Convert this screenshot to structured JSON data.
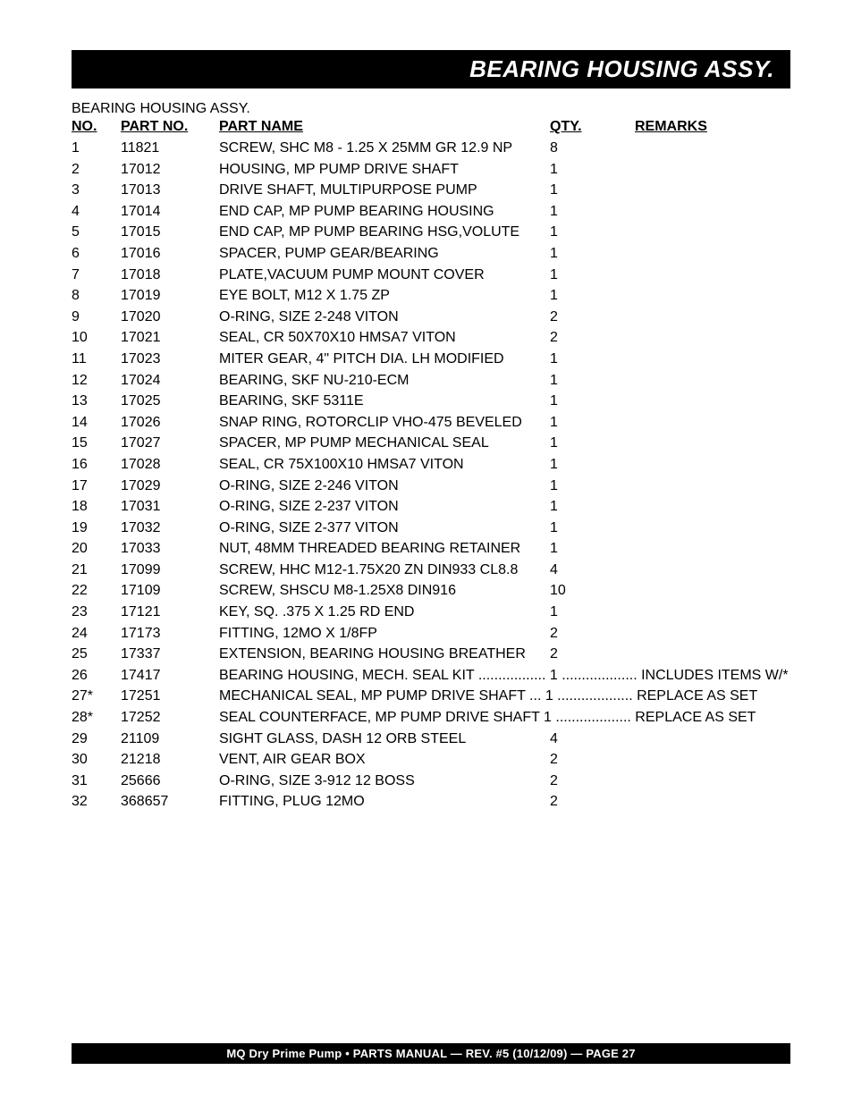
{
  "header": {
    "title": "BEARING HOUSING ASSY."
  },
  "section": {
    "title": "BEARING HOUSING ASSY."
  },
  "columns": {
    "no": "NO.",
    "part_no": "PART NO.",
    "part_name": "PART NAME",
    "qty": "QTY.",
    "remarks": "REMARKS"
  },
  "rows": [
    {
      "no": "1",
      "part": "11821",
      "name": "SCREW, SHC M8 - 1.25 X 25MM GR 12.9 NP",
      "qty": "8",
      "remarks": ""
    },
    {
      "no": "2",
      "part": "17012",
      "name": "HOUSING, MP PUMP DRIVE SHAFT",
      "qty": "1",
      "remarks": ""
    },
    {
      "no": "3",
      "part": "17013",
      "name": "DRIVE SHAFT, MULTIPURPOSE PUMP",
      "qty": "1",
      "remarks": ""
    },
    {
      "no": "4",
      "part": "17014",
      "name": "END CAP, MP PUMP BEARING HOUSING",
      "qty": "1",
      "remarks": ""
    },
    {
      "no": "5",
      "part": "17015",
      "name": "END CAP, MP PUMP BEARING HSG,VOLUTE",
      "qty": "1",
      "remarks": ""
    },
    {
      "no": "6",
      "part": "17016",
      "name": "SPACER, PUMP GEAR/BEARING",
      "qty": "1",
      "remarks": ""
    },
    {
      "no": "7",
      "part": "17018",
      "name": "PLATE,VACUUM PUMP MOUNT COVER",
      "qty": "1",
      "remarks": ""
    },
    {
      "no": "8",
      "part": "17019",
      "name": "EYE BOLT, M12 X 1.75 ZP",
      "qty": "1",
      "remarks": ""
    },
    {
      "no": "9",
      "part": "17020",
      "name": "O-RING, SIZE 2-248 VITON",
      "qty": "2",
      "remarks": ""
    },
    {
      "no": "10",
      "part": "17021",
      "name": "SEAL, CR 50X70X10 HMSA7 VITON",
      "qty": "2",
      "remarks": ""
    },
    {
      "no": "11",
      "part": "17023",
      "name": "MITER GEAR, 4\" PITCH DIA. LH MODIFIED",
      "qty": "1",
      "remarks": ""
    },
    {
      "no": "12",
      "part": "17024",
      "name": "BEARING, SKF NU-210-ECM",
      "qty": "1",
      "remarks": ""
    },
    {
      "no": "13",
      "part": "17025",
      "name": "BEARING, SKF 5311E",
      "qty": "1",
      "remarks": ""
    },
    {
      "no": "14",
      "part": "17026",
      "name": "SNAP RING, ROTORCLIP VHO-475 BEVELED",
      "qty": "1",
      "remarks": ""
    },
    {
      "no": "15",
      "part": "17027",
      "name": "SPACER, MP PUMP MECHANICAL SEAL",
      "qty": "1",
      "remarks": ""
    },
    {
      "no": "16",
      "part": "17028",
      "name": "SEAL, CR 75X100X10 HMSA7 VITON",
      "qty": "1",
      "remarks": ""
    },
    {
      "no": "17",
      "part": "17029",
      "name": "O-RING, SIZE 2-246 VITON",
      "qty": "1",
      "remarks": ""
    },
    {
      "no": "18",
      "part": "17031",
      "name": "O-RING, SIZE 2-237 VITON",
      "qty": "1",
      "remarks": ""
    },
    {
      "no": "19",
      "part": "17032",
      "name": "O-RING, SIZE 2-377 VITON",
      "qty": "1",
      "remarks": ""
    },
    {
      "no": "20",
      "part": "17033",
      "name": "NUT, 48MM THREADED BEARING RETAINER",
      "qty": "1",
      "remarks": ""
    },
    {
      "no": "21",
      "part": "17099",
      "name": "SCREW, HHC M12-1.75X20 ZN DIN933 CL8.8",
      "qty": "4",
      "remarks": ""
    },
    {
      "no": "22",
      "part": "17109",
      "name": "SCREW, SHSCU M8-1.25X8 DIN916",
      "qty": "10",
      "remarks": ""
    },
    {
      "no": "23",
      "part": "17121",
      "name": "KEY, SQ. .375 X 1.25 RD END",
      "qty": "1",
      "remarks": ""
    },
    {
      "no": "24",
      "part": "17173",
      "name": "FITTING, 12MO X 1/8FP",
      "qty": "2",
      "remarks": ""
    },
    {
      "no": "25",
      "part": "17337",
      "name": "EXTENSION, BEARING HOUSING BREATHER",
      "qty": "2",
      "remarks": ""
    },
    {
      "no": "26",
      "part": "17417",
      "name": "BEARING HOUSING, MECH. SEAL KIT ................. 1 ................... INCLUDES ITEMS W/*",
      "qty": "",
      "remarks": "",
      "span": true
    },
    {
      "no": "27*",
      "part": "17251",
      "name": "MECHANICAL SEAL, MP PUMP DRIVE SHAFT ... 1 ................... REPLACE AS SET",
      "qty": "",
      "remarks": "",
      "span": true
    },
    {
      "no": "28*",
      "part": "17252",
      "name": "SEAL COUNTERFACE, MP PUMP DRIVE SHAFT 1 ................... REPLACE AS SET",
      "qty": "",
      "remarks": "",
      "span": true
    },
    {
      "no": "29",
      "part": "21109",
      "name": "SIGHT GLASS, DASH 12 ORB STEEL",
      "qty": "4",
      "remarks": ""
    },
    {
      "no": "30",
      "part": "21218",
      "name": "VENT, AIR GEAR BOX",
      "qty": "2",
      "remarks": ""
    },
    {
      "no": "31",
      "part": "25666",
      "name": "O-RING, SIZE 3-912 12 BOSS",
      "qty": "2",
      "remarks": ""
    },
    {
      "no": "32",
      "part": "368657",
      "name": "FITTING, PLUG 12MO",
      "qty": "2",
      "remarks": ""
    }
  ],
  "footer": {
    "text": "MQ Dry Prime Pump • PARTS MANUAL — REV. #5 (10/12/09) — PAGE 27"
  },
  "style": {
    "title_bg": "#000000",
    "title_fg": "#ffffff",
    "title_fontsize": 26,
    "body_fontsize": 16,
    "footer_fontsize": 13
  }
}
